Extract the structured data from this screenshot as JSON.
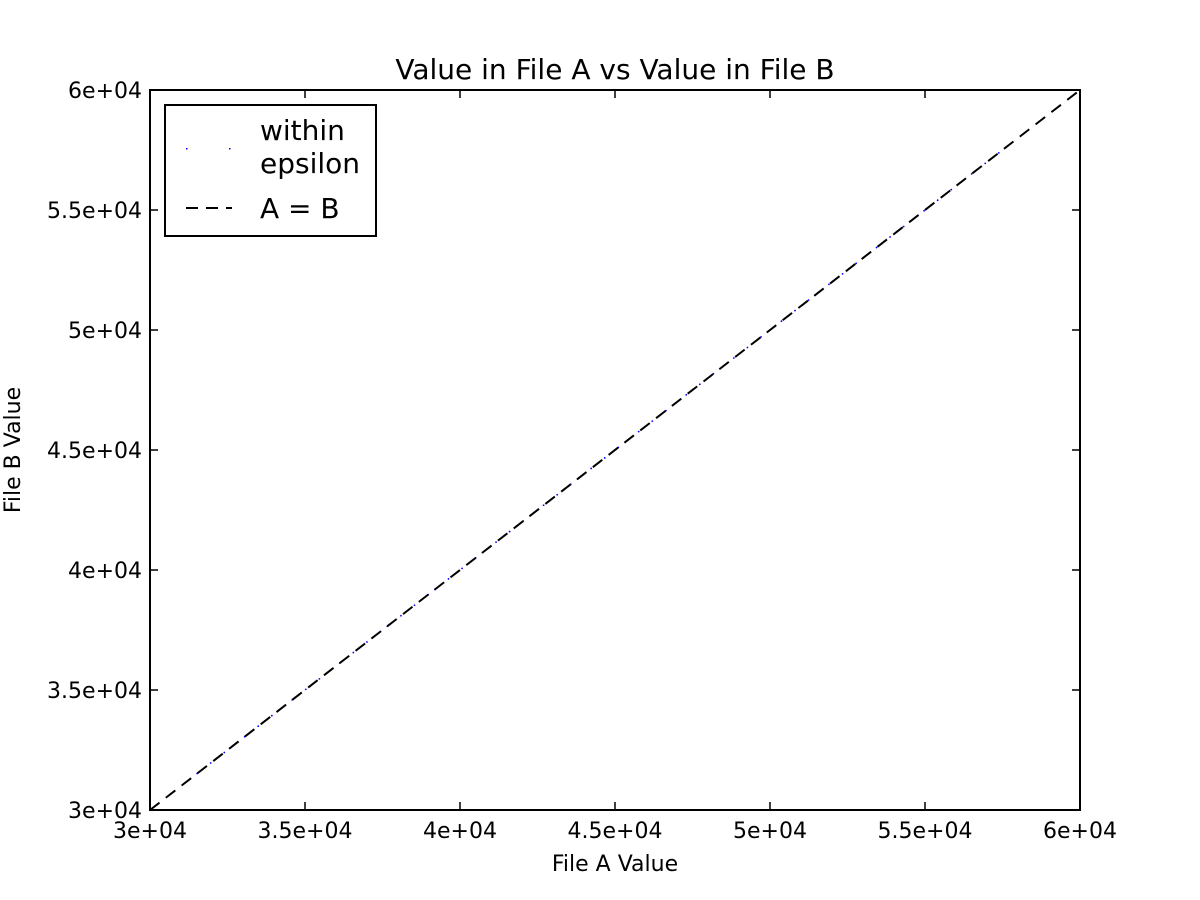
{
  "chart_data": {
    "type": "scatter",
    "title": "Value in File A vs Value in File B",
    "xlabel": "File A Value",
    "ylabel": "File B Value",
    "xlim": [
      30000,
      60000
    ],
    "ylim": [
      30000,
      60000
    ],
    "xticks": [
      30000,
      35000,
      40000,
      45000,
      50000,
      55000,
      60000
    ],
    "yticks": [
      30000,
      35000,
      40000,
      45000,
      50000,
      55000,
      60000
    ],
    "xtick_labels": [
      "3e+04",
      "3.5e+04",
      "4e+04",
      "4.5e+04",
      "5e+04",
      "5.5e+04",
      "6e+04"
    ],
    "ytick_labels": [
      "3e+04",
      "3.5e+04",
      "4e+04",
      "4.5e+04",
      "5e+04",
      "5.5e+04",
      "6e+04"
    ],
    "grid": false,
    "legend_position": "top-left",
    "series": [
      {
        "name": "within\nepsilon",
        "kind": "points",
        "color": "#0000ff",
        "x_range": [
          31300,
          57600
        ],
        "y_equals_x": true
      },
      {
        "name": "A = B",
        "kind": "dashed-line",
        "color": "#000000",
        "x": [
          30000,
          60000
        ],
        "y": [
          30000,
          60000
        ]
      }
    ]
  }
}
